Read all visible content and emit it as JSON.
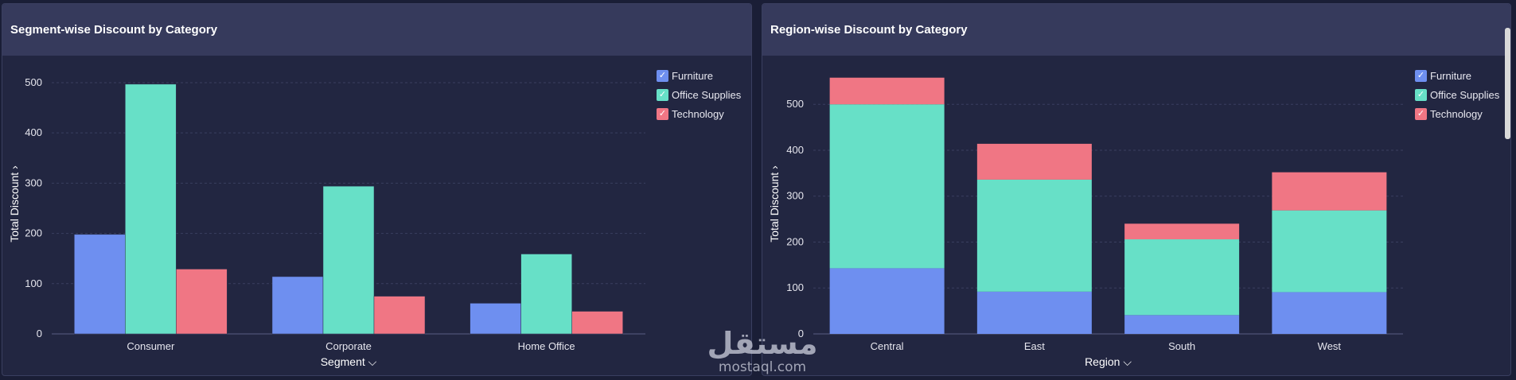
{
  "colors": {
    "Furniture": "#6e8ff0",
    "Office Supplies": "#67e0c7",
    "Technology": "#f07684"
  },
  "legend": [
    "Furniture",
    "Office Supplies",
    "Technology"
  ],
  "legend_check": "✓",
  "watermark": {
    "logo": "مستقل",
    "text": "mostaql.com"
  },
  "chart_data": [
    {
      "title": "Segment-wise Discount by Category",
      "type": "bar",
      "mode": "grouped",
      "xlabel": "Segment",
      "xlabel_suffix": "⌵",
      "ylabel": "Total Discount",
      "ylabel_suffix": "›",
      "ylim": [
        0,
        530
      ],
      "yticks": [
        0,
        100,
        200,
        300,
        400,
        500
      ],
      "categories": [
        "Consumer",
        "Corporate",
        "Home Office"
      ],
      "series": [
        {
          "name": "Furniture",
          "values": [
            198,
            114,
            61
          ]
        },
        {
          "name": "Office Supplies",
          "values": [
            497,
            294,
            159
          ]
        },
        {
          "name": "Technology",
          "values": [
            129,
            75,
            45
          ]
        }
      ]
    },
    {
      "title": "Region-wise Discount by Category",
      "type": "bar",
      "mode": "stacked",
      "xlabel": "Region",
      "xlabel_suffix": "⌵",
      "ylabel": "Total Discount",
      "ylabel_suffix": "›",
      "ylim": [
        0,
        580
      ],
      "yticks": [
        0,
        100,
        200,
        300,
        400,
        500
      ],
      "categories": [
        "Central",
        "East",
        "South",
        "West"
      ],
      "series": [
        {
          "name": "Furniture",
          "values": [
            143,
            92,
            41,
            91
          ]
        },
        {
          "name": "Office Supplies",
          "values": [
            357,
            244,
            165,
            178
          ]
        },
        {
          "name": "Technology",
          "values": [
            58,
            78,
            34,
            83
          ]
        }
      ]
    }
  ]
}
